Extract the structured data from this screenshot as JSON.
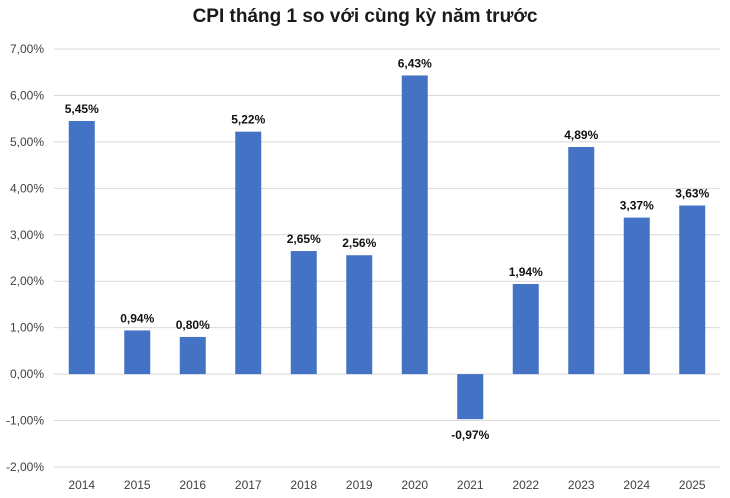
{
  "chart_data": {
    "type": "bar",
    "title": "CPI tháng 1 so với cùng kỳ năm trước",
    "xlabel": "",
    "ylabel": "",
    "categories": [
      "2014",
      "2015",
      "2016",
      "2017",
      "2018",
      "2019",
      "2020",
      "2021",
      "2022",
      "2023",
      "2024",
      "2025"
    ],
    "values": [
      5.45,
      0.94,
      0.8,
      5.22,
      2.65,
      2.56,
      6.43,
      -0.97,
      1.94,
      4.89,
      3.37,
      3.63
    ],
    "data_labels": [
      "5,45%",
      "0,94%",
      "0,80%",
      "5,22%",
      "2,65%",
      "2,56%",
      "6,43%",
      "-0,97%",
      "1,94%",
      "4,89%",
      "3,37%",
      "3,63%"
    ],
    "ylim": [
      -2,
      7
    ],
    "yticks": [
      7,
      6,
      5,
      4,
      3,
      2,
      1,
      0,
      -1,
      -2
    ],
    "ytick_labels": [
      "7,00%",
      "6,00%",
      "5,00%",
      "4,00%",
      "3,00%",
      "2,00%",
      "1,00%",
      "0,00%",
      "-1,00%",
      "-2,00%"
    ],
    "grid": true,
    "legend": "none",
    "bar_color": "#4472C4",
    "grid_color": "#d9d9d9"
  }
}
